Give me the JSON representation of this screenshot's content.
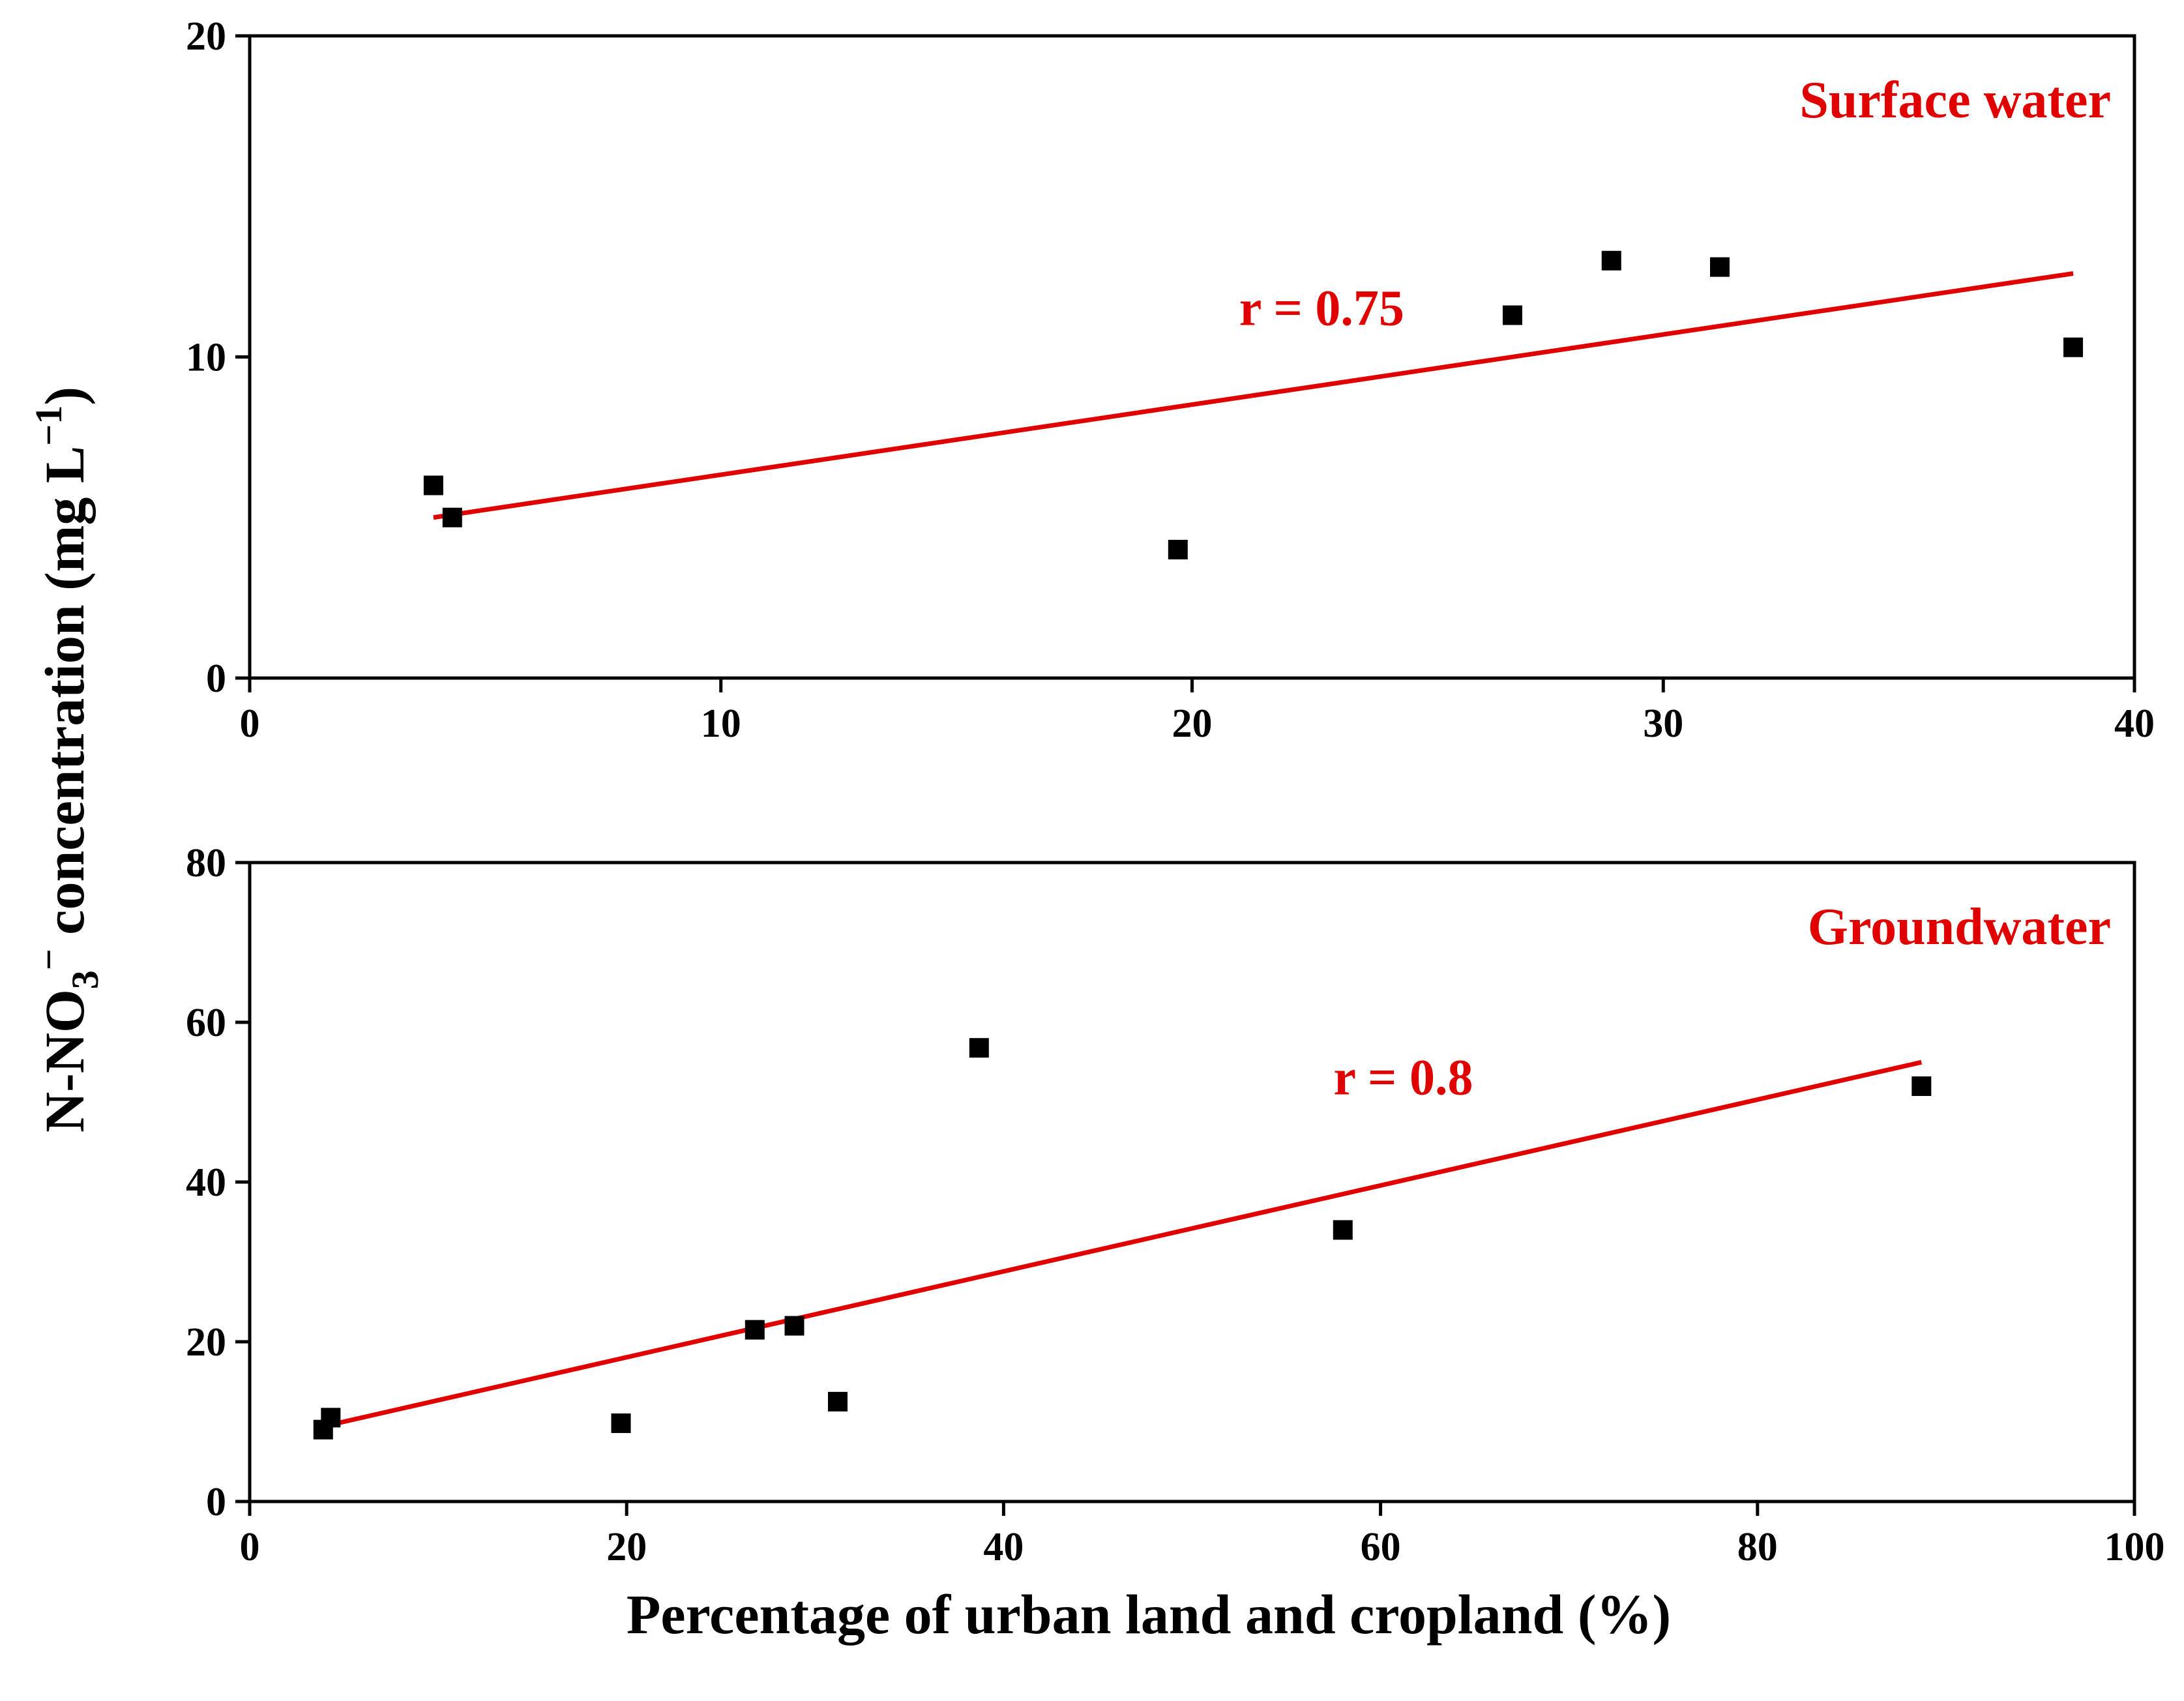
{
  "figure": {
    "ylabel_parts": {
      "main": "N-NO",
      "sub": "3",
      "sup": "−",
      "tail": " concentration (mg L",
      "tail_sup": "−1",
      "close": ")"
    },
    "xlabel": "Percentage of urban land and cropland (%)"
  },
  "chart_data": [
    {
      "type": "scatter",
      "title": "Surface water",
      "xlabel": "",
      "ylabel": "N-NO3− concentration (mg L−1)",
      "xlim": [
        0,
        40
      ],
      "ylim": [
        0,
        20
      ],
      "xticks": [
        0,
        10,
        20,
        30,
        40
      ],
      "yticks": [
        0,
        10,
        20
      ],
      "xtick_labels": [
        "0",
        "10",
        "20",
        "30",
        "40"
      ],
      "ytick_labels": [
        "0",
        "10",
        "20"
      ],
      "grid": false,
      "points": [
        {
          "x": 3.9,
          "y": 6.0
        },
        {
          "x": 4.3,
          "y": 5.0
        },
        {
          "x": 19.7,
          "y": 4.0
        },
        {
          "x": 26.8,
          "y": 11.3
        },
        {
          "x": 28.9,
          "y": 13.0
        },
        {
          "x": 31.2,
          "y": 12.8
        },
        {
          "x": 38.7,
          "y": 10.3
        }
      ],
      "fit_line": {
        "x": [
          3.9,
          38.7
        ],
        "y": [
          5.0,
          12.6
        ],
        "color": "#e00000"
      },
      "annotation": {
        "text": "r = 0.75",
        "x": 21.0,
        "y": 11.0
      },
      "marker_color": "#000000"
    },
    {
      "type": "scatter",
      "title": "Groundwater",
      "xlabel": "Percentage of urban land and cropland (%)",
      "ylabel": "N-NO3− concentration (mg L−1)",
      "xlim": [
        0,
        100
      ],
      "ylim": [
        0,
        80
      ],
      "xticks": [
        0,
        20,
        40,
        60,
        80,
        100
      ],
      "yticks": [
        0,
        20,
        40,
        60,
        80
      ],
      "xtick_labels": [
        "0",
        "20",
        "40",
        "60",
        "80",
        "100"
      ],
      "ytick_labels": [
        "0",
        "20",
        "40",
        "60",
        "80"
      ],
      "grid": false,
      "points": [
        {
          "x": 3.9,
          "y": 9.0
        },
        {
          "x": 4.3,
          "y": 10.5
        },
        {
          "x": 19.7,
          "y": 9.8
        },
        {
          "x": 26.8,
          "y": 21.5
        },
        {
          "x": 28.9,
          "y": 22.0
        },
        {
          "x": 31.2,
          "y": 12.5
        },
        {
          "x": 38.7,
          "y": 56.8
        },
        {
          "x": 58.0,
          "y": 34.0
        },
        {
          "x": 88.7,
          "y": 52.0
        }
      ],
      "fit_line": {
        "x": [
          3.9,
          88.7
        ],
        "y": [
          9.4,
          55.0
        ],
        "color": "#e00000"
      },
      "annotation": {
        "text": "r = 0.8",
        "x": 57.5,
        "y": 51.0
      },
      "marker_color": "#000000"
    }
  ]
}
